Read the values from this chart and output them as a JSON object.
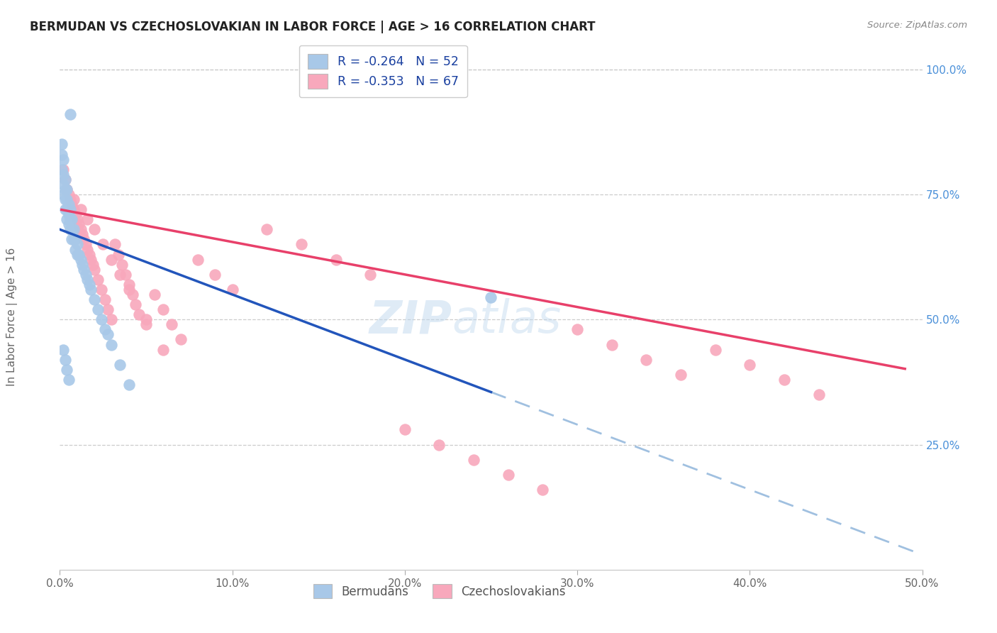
{
  "title": "BERMUDAN VS CZECHOSLOVAKIAN IN LABOR FORCE | AGE > 16 CORRELATION CHART",
  "source_text": "Source: ZipAtlas.com",
  "ylabel": "In Labor Force | Age > 16",
  "xlim": [
    0.0,
    0.5
  ],
  "ylim": [
    0.0,
    1.05
  ],
  "xtick_labels": [
    "0.0%",
    "10.0%",
    "20.0%",
    "30.0%",
    "40.0%",
    "50.0%"
  ],
  "xtick_vals": [
    0.0,
    0.1,
    0.2,
    0.3,
    0.4,
    0.5
  ],
  "ytick_labels_right": [
    "25.0%",
    "50.0%",
    "75.0%",
    "100.0%"
  ],
  "ytick_vals": [
    0.25,
    0.5,
    0.75,
    1.0
  ],
  "blue_scatter_color": "#a8c8e8",
  "pink_scatter_color": "#f8a8bc",
  "blue_line_color": "#2255bb",
  "pink_line_color": "#e8406a",
  "dashed_line_color": "#a0c0e0",
  "legend_blue_label": "R = -0.264   N = 52",
  "legend_pink_label": "R = -0.353   N = 67",
  "bottom_legend_blue": "Bermudans",
  "bottom_legend_pink": "Czechoslovakians",
  "watermark_zip": "ZIP",
  "watermark_atlas": "atlas",
  "blue_R": -0.264,
  "blue_N": 52,
  "pink_R": -0.353,
  "pink_N": 67,
  "grid_color": "#cccccc",
  "title_color": "#222222",
  "source_color": "#888888",
  "tick_color": "#666666",
  "right_tick_color": "#4a90d9",
  "blue_intercept": 0.68,
  "blue_slope": -1.3,
  "pink_intercept": 0.72,
  "pink_slope": -0.65
}
